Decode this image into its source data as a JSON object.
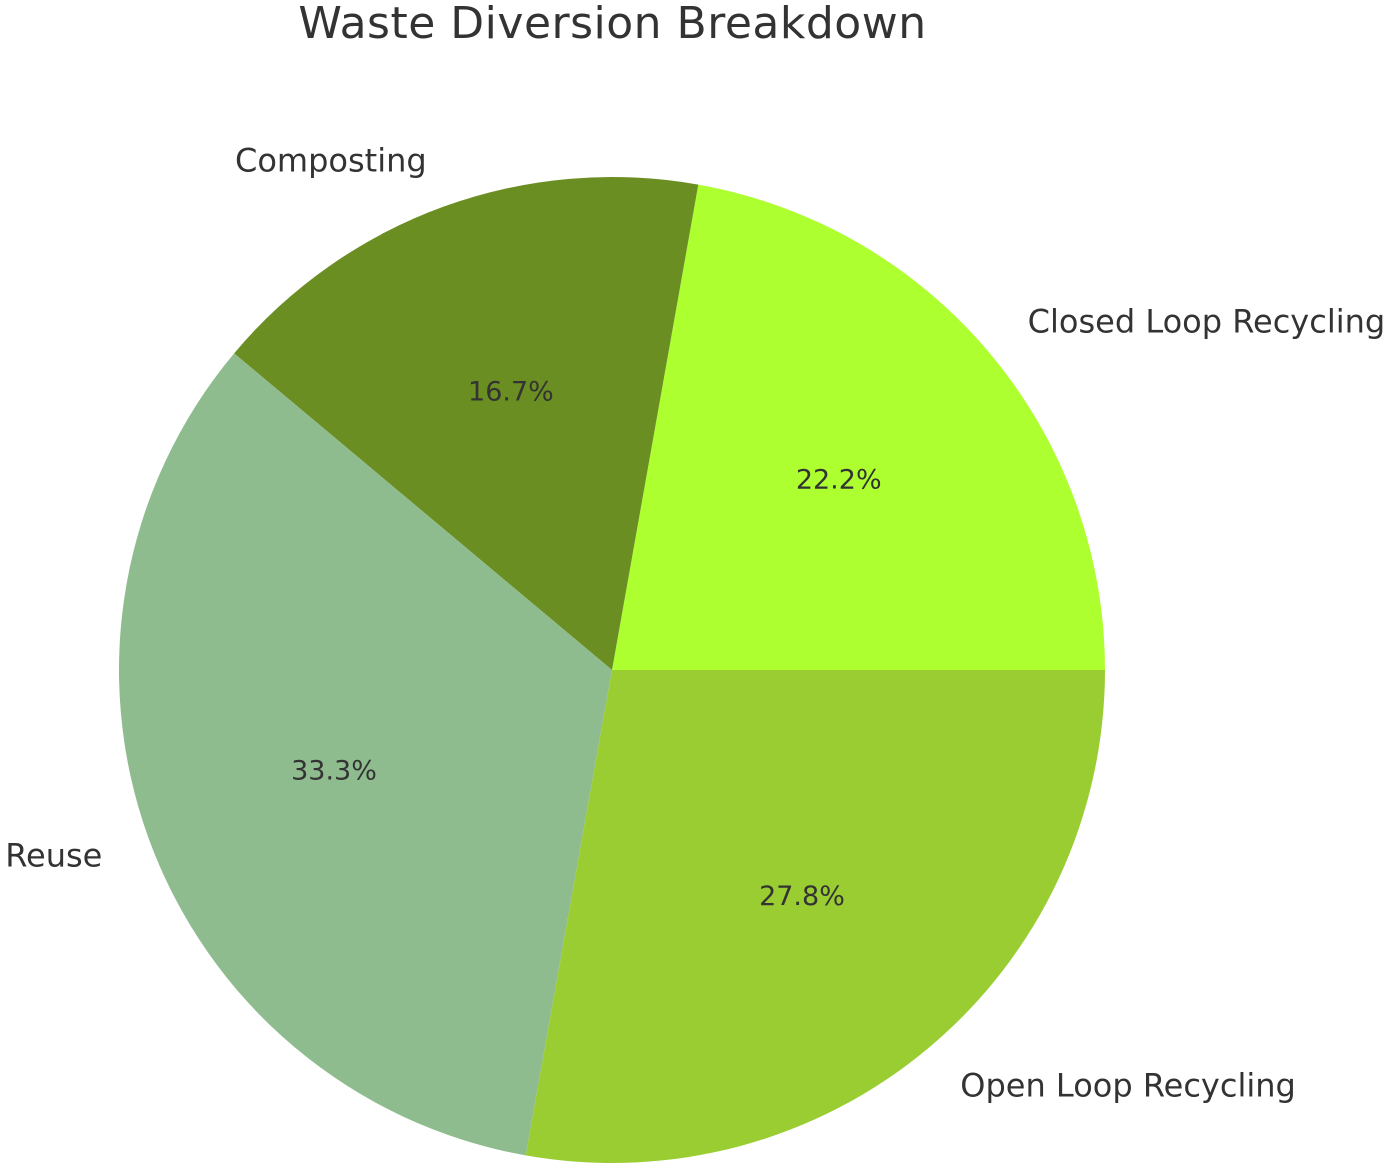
{
  "chart_data": {
    "type": "pie",
    "title": "Waste Diversion Breakdown",
    "slices": [
      {
        "label": "Closed Loop Recycling",
        "value": 22.2,
        "pct_label": "22.2%",
        "color": "#adff2f"
      },
      {
        "label": "Composting",
        "value": 16.7,
        "pct_label": "16.7%",
        "color": "#6b8e23"
      },
      {
        "label": "Reuse",
        "value": 33.3,
        "pct_label": "33.3%",
        "color": "#8fbc8f"
      },
      {
        "label": "Open Loop Recycling",
        "value": 27.8,
        "pct_label": "27.8%",
        "color": "#9acd32"
      }
    ],
    "start_angle_deg": 0,
    "direction": "counterclockwise",
    "legend": "none"
  }
}
